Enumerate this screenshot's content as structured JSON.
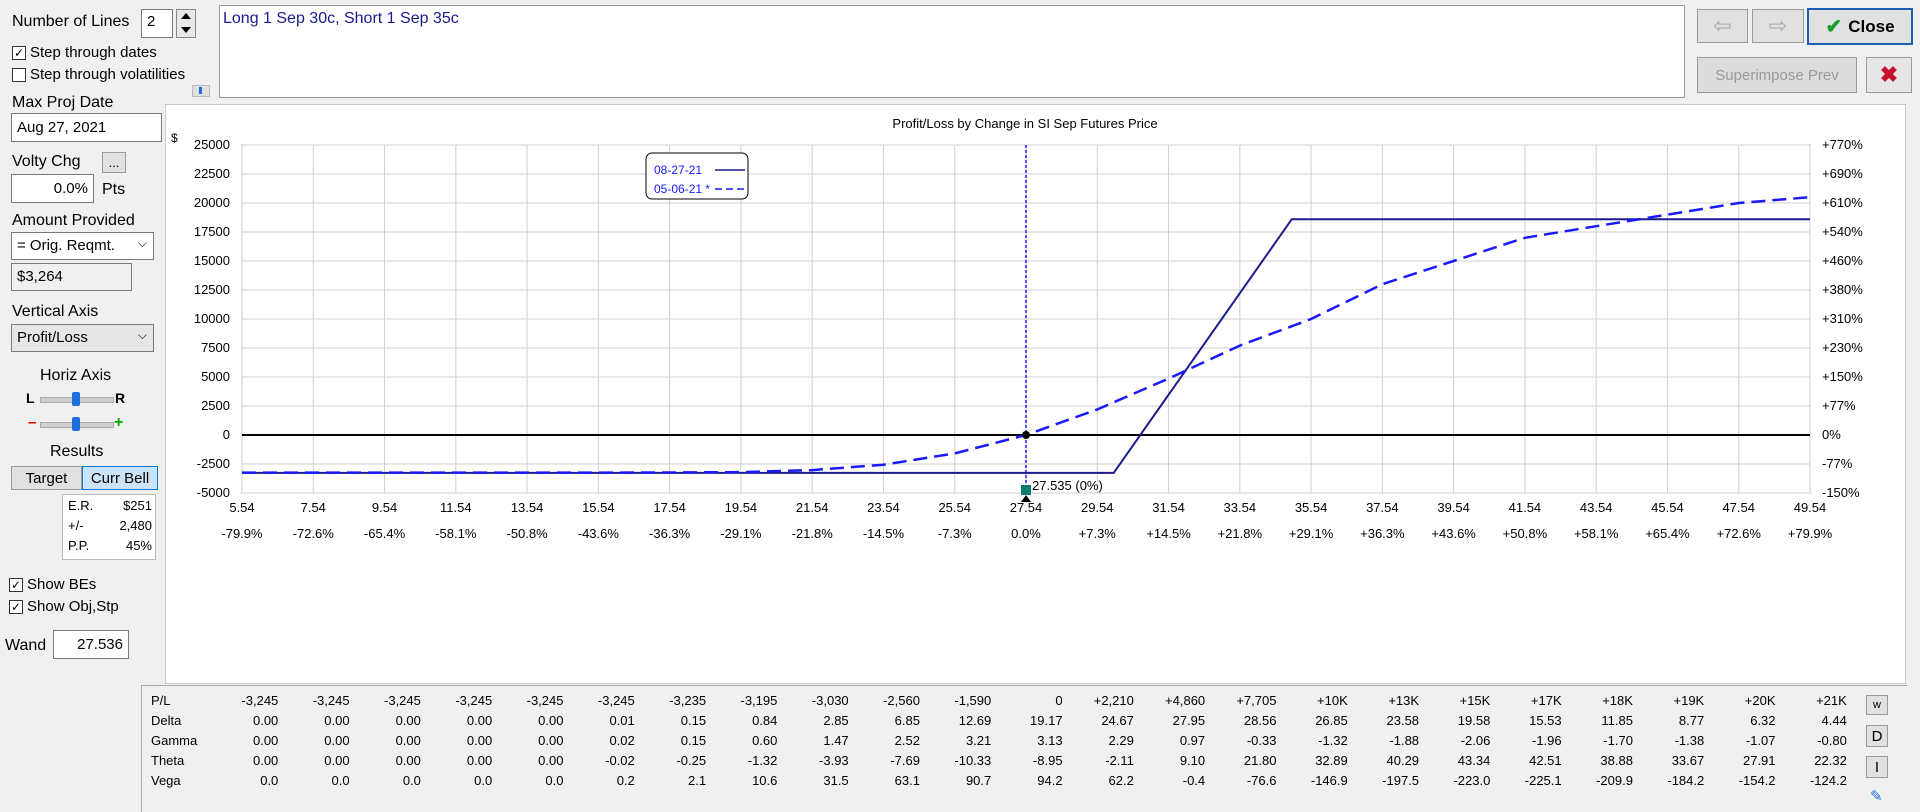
{
  "left": {
    "num_lines_label": "Number of Lines",
    "num_lines_value": "2",
    "step_dates_label": "Step through dates",
    "step_dates_checked": true,
    "step_vol_label": "Step through volatilities",
    "step_vol_checked": false,
    "max_proj_date_label": "Max Proj Date",
    "max_proj_date_value": "Aug 27, 2021",
    "volty_chg_label": "Volty Chg",
    "volty_btn": "...",
    "volty_value": "0.0%",
    "volty_unit": "Pts",
    "amount_provided_label": "Amount Provided",
    "amount_provided_value": "= Orig. Reqmt.",
    "amount_value": "$3,264",
    "vertical_axis_label": "Vertical Axis",
    "vertical_axis_value": "Profit/Loss",
    "horiz_axis_label": "Horiz Axis",
    "horiz_l": "L",
    "horiz_r": "R",
    "horiz_minus": "–",
    "horiz_plus": "+",
    "results_label": "Results",
    "target_btn": "Target",
    "curr_bell_btn": "Curr Bell",
    "results": [
      {
        "k": "E.R.",
        "v": "$251"
      },
      {
        "k": "+/-",
        "v": "2,480"
      },
      {
        "k": "P.P.",
        "v": "45%"
      }
    ],
    "show_bes_label": "Show BEs",
    "show_bes_checked": true,
    "show_obj_label": "Show Obj,Stp",
    "show_obj_checked": true,
    "wand_label": "Wand",
    "wand_value": "27.536"
  },
  "top": {
    "description": "Long 1 Sep 30c, Short 1 Sep 35c",
    "arrow_left": "⇦",
    "arrow_right": "⇨",
    "close_label": "Close",
    "superimpose_label": "Superimpose Prev",
    "delete_icon": "✖"
  },
  "chart_data": {
    "type": "line",
    "title": "Profit/Loss by Change in SI Sep Futures Price",
    "y_unit": "$",
    "xlim": [
      5.54,
      49.54
    ],
    "ylim": [
      -5000,
      25000
    ],
    "x_ticks": [
      "5.54",
      "7.54",
      "9.54",
      "11.54",
      "13.54",
      "15.54",
      "17.54",
      "19.54",
      "21.54",
      "23.54",
      "25.54",
      "27.54",
      "29.54",
      "31.54",
      "33.54",
      "35.54",
      "37.54",
      "39.54",
      "41.54",
      "43.54",
      "45.54",
      "47.54",
      "49.54"
    ],
    "x_pct_ticks": [
      "-79.9%",
      "-72.6%",
      "-65.4%",
      "-58.1%",
      "-50.8%",
      "-43.6%",
      "-36.3%",
      "-29.1%",
      "-21.8%",
      "-14.5%",
      "-7.3%",
      "0.0%",
      "+7.3%",
      "+14.5%",
      "+21.8%",
      "+29.1%",
      "+36.3%",
      "+43.6%",
      "+50.8%",
      "+58.1%",
      "+65.4%",
      "+72.6%",
      "+79.9%"
    ],
    "y_ticks": [
      "25000",
      "22500",
      "20000",
      "17500",
      "15000",
      "12500",
      "10000",
      "7500",
      "5000",
      "2500",
      "0",
      "-2500",
      "-5000"
    ],
    "y_right_ticks": [
      "+770%",
      "+690%",
      "+610%",
      "+540%",
      "+460%",
      "+380%",
      "+310%",
      "+230%",
      "+150%",
      "+77%",
      "0%",
      "-77%",
      "-150%"
    ],
    "current_price": 27.54,
    "marker_label": "27.535 (0%)",
    "legend": [
      {
        "name": "08-27-21",
        "style": "solid"
      },
      {
        "name": "05-06-21 *",
        "style": "dashed"
      }
    ],
    "series": [
      {
        "name": "08-27-21",
        "color": "#1c1c8c",
        "x": [
          5.54,
          30.0,
          35.0,
          49.54
        ],
        "y": [
          -3264,
          -3264,
          18600,
          18600
        ]
      },
      {
        "name": "05-06-21 *",
        "color": "#1a1aff",
        "x": [
          5.54,
          7.54,
          9.54,
          11.54,
          13.54,
          15.54,
          17.54,
          19.54,
          21.54,
          23.54,
          25.54,
          27.54,
          29.54,
          31.54,
          33.54,
          35.54,
          37.54,
          39.54,
          41.54,
          43.54,
          45.54,
          47.54,
          49.54
        ],
        "y": [
          -3245,
          -3245,
          -3245,
          -3245,
          -3245,
          -3245,
          -3235,
          -3195,
          -3030,
          -2560,
          -1590,
          0,
          2210,
          4860,
          7705,
          10000,
          13000,
          15000,
          17000,
          18000,
          19000,
          20000,
          20500
        ]
      }
    ]
  },
  "greeks": {
    "rows": [
      {
        "label": "P/L",
        "values": [
          "-3,245",
          "-3,245",
          "-3,245",
          "-3,245",
          "-3,245",
          "-3,245",
          "-3,235",
          "-3,195",
          "-3,030",
          "-2,560",
          "-1,590",
          "0",
          "+2,210",
          "+4,860",
          "+7,705",
          "+10K",
          "+13K",
          "+15K",
          "+17K",
          "+18K",
          "+19K",
          "+20K",
          "+21K"
        ]
      },
      {
        "label": "Delta",
        "values": [
          "0.00",
          "0.00",
          "0.00",
          "0.00",
          "0.00",
          "0.01",
          "0.15",
          "0.84",
          "2.85",
          "6.85",
          "12.69",
          "19.17",
          "24.67",
          "27.95",
          "28.56",
          "26.85",
          "23.58",
          "19.58",
          "15.53",
          "11.85",
          "8.77",
          "6.32",
          "4.44"
        ]
      },
      {
        "label": "Gamma",
        "values": [
          "0.00",
          "0.00",
          "0.00",
          "0.00",
          "0.00",
          "0.02",
          "0.15",
          "0.60",
          "1.47",
          "2.52",
          "3.21",
          "3.13",
          "2.29",
          "0.97",
          "-0.33",
          "-1.32",
          "-1.88",
          "-2.06",
          "-1.96",
          "-1.70",
          "-1.38",
          "-1.07",
          "-0.80"
        ]
      },
      {
        "label": "Theta",
        "values": [
          "0.00",
          "0.00",
          "0.00",
          "0.00",
          "0.00",
          "-0.02",
          "-0.25",
          "-1.32",
          "-3.93",
          "-7.69",
          "-10.33",
          "-8.95",
          "-2.11",
          "9.10",
          "21.80",
          "32.89",
          "40.29",
          "43.34",
          "42.51",
          "38.88",
          "33.67",
          "27.91",
          "22.32"
        ]
      },
      {
        "label": "Vega",
        "values": [
          "0.0",
          "0.0",
          "0.0",
          "0.0",
          "0.0",
          "0.2",
          "2.1",
          "10.6",
          "31.5",
          "63.1",
          "90.7",
          "94.2",
          "62.2",
          "-0.4",
          "-76.6",
          "-146.9",
          "-197.5",
          "-223.0",
          "-225.1",
          "-209.9",
          "-184.2",
          "-154.2",
          "-124.2"
        ]
      }
    ],
    "side_buttons": [
      "w",
      "D",
      "I",
      "✎"
    ]
  }
}
